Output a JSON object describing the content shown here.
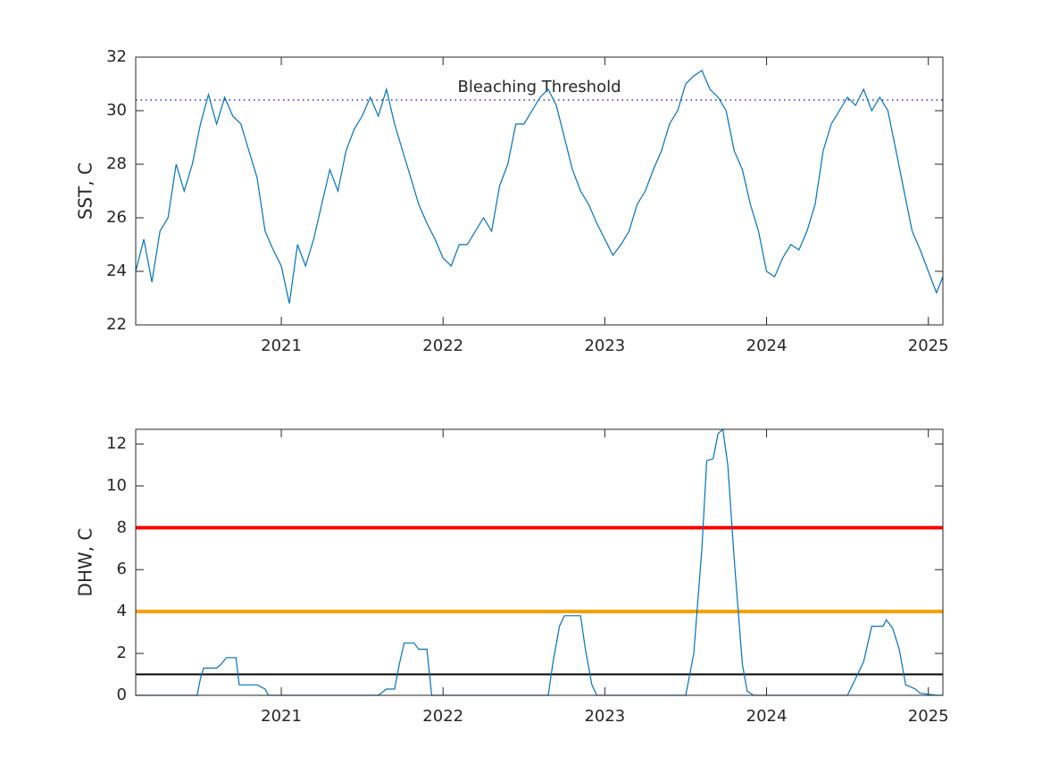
{
  "chart_data": [
    {
      "type": "line",
      "ylabel": "SST, C",
      "color": "#0072bd",
      "x": [
        2020.1,
        2020.15,
        2020.2,
        2020.25,
        2020.3,
        2020.35,
        2020.4,
        2020.45,
        2020.5,
        2020.55,
        2020.6,
        2020.65,
        2020.7,
        2020.75,
        2020.8,
        2020.85,
        2020.9,
        2020.95,
        2021.0,
        2021.05,
        2021.1,
        2021.15,
        2021.2,
        2021.25,
        2021.3,
        2021.35,
        2021.4,
        2021.45,
        2021.5,
        2021.55,
        2021.6,
        2021.65,
        2021.7,
        2021.75,
        2021.8,
        2021.85,
        2021.9,
        2021.95,
        2022.0,
        2022.05,
        2022.1,
        2022.15,
        2022.2,
        2022.25,
        2022.3,
        2022.35,
        2022.4,
        2022.45,
        2022.5,
        2022.55,
        2022.6,
        2022.65,
        2022.7,
        2022.75,
        2022.8,
        2022.85,
        2022.9,
        2022.95,
        2023.0,
        2023.05,
        2023.1,
        2023.15,
        2023.2,
        2023.25,
        2023.3,
        2023.35,
        2023.4,
        2023.45,
        2023.5,
        2023.55,
        2023.6,
        2023.65,
        2023.7,
        2023.75,
        2023.8,
        2023.85,
        2023.9,
        2023.95,
        2024.0,
        2024.05,
        2024.1,
        2024.15,
        2024.2,
        2024.25,
        2024.3,
        2024.35,
        2024.4,
        2024.45,
        2024.5,
        2024.55,
        2024.6,
        2024.65,
        2024.7,
        2024.75,
        2024.8,
        2024.85,
        2024.9,
        2024.95,
        2025.0,
        2025.05,
        2025.09
      ],
      "values": [
        24.0,
        25.2,
        23.6,
        25.5,
        26.0,
        28.0,
        27.0,
        28.0,
        29.5,
        30.6,
        29.5,
        30.5,
        29.8,
        29.5,
        28.5,
        27.5,
        25.5,
        24.8,
        24.2,
        22.8,
        25.0,
        24.2,
        25.2,
        26.5,
        27.8,
        27.0,
        28.5,
        29.3,
        29.8,
        30.5,
        29.8,
        30.8,
        29.5,
        28.5,
        27.5,
        26.5,
        25.8,
        25.2,
        24.5,
        24.2,
        25.0,
        25.0,
        25.5,
        26.0,
        25.5,
        27.2,
        28.0,
        29.5,
        29.5,
        30.0,
        30.5,
        30.8,
        30.2,
        29.0,
        27.8,
        27.0,
        26.5,
        25.8,
        25.2,
        24.6,
        25.0,
        25.5,
        26.5,
        27.0,
        27.8,
        28.5,
        29.5,
        30.0,
        31.0,
        31.3,
        31.5,
        30.8,
        30.5,
        30.0,
        28.5,
        27.8,
        26.5,
        25.5,
        24.0,
        23.8,
        24.5,
        25.0,
        24.8,
        25.5,
        26.5,
        28.5,
        29.5,
        30.0,
        30.5,
        30.2,
        30.8,
        30.0,
        30.5,
        30.0,
        28.5,
        27.0,
        25.5,
        24.8,
        24.0,
        23.2,
        23.8
      ],
      "xlim": [
        2020.1,
        2025.09
      ],
      "xticks": [
        2021,
        2022,
        2023,
        2024,
        2025
      ],
      "ylim": [
        22,
        32
      ],
      "yticks": [
        22,
        24,
        26,
        28,
        30,
        32
      ],
      "threshold": {
        "label": "Bleaching Threshold",
        "value": 30.4,
        "color": "#0000ff"
      }
    },
    {
      "type": "line",
      "ylabel": "DHW, C",
      "color": "#0072bd",
      "x": [
        2020.1,
        2020.48,
        2020.5,
        2020.52,
        2020.6,
        2020.63,
        2020.66,
        2020.72,
        2020.74,
        2020.85,
        2020.9,
        2020.92,
        2021.6,
        2021.65,
        2021.7,
        2021.73,
        2021.76,
        2021.82,
        2021.85,
        2021.9,
        2021.93,
        2022.65,
        2022.68,
        2022.72,
        2022.75,
        2022.85,
        2022.88,
        2022.92,
        2022.95,
        2023.5,
        2023.55,
        2023.6,
        2023.63,
        2023.67,
        2023.7,
        2023.73,
        2023.76,
        2023.8,
        2023.85,
        2023.88,
        2023.92,
        2024.5,
        2024.55,
        2024.6,
        2024.65,
        2024.72,
        2024.74,
        2024.78,
        2024.82,
        2024.86,
        2024.92,
        2024.95,
        2025.05,
        2025.09
      ],
      "values": [
        0,
        0,
        0.8,
        1.3,
        1.3,
        1.5,
        1.8,
        1.8,
        0.5,
        0.5,
        0.3,
        0,
        0,
        0.3,
        0.3,
        1.5,
        2.5,
        2.5,
        2.2,
        2.2,
        0,
        0,
        1.6,
        3.3,
        3.8,
        3.8,
        2.2,
        0.5,
        0,
        0,
        2,
        7,
        11.2,
        11.3,
        12.5,
        12.7,
        11,
        6.5,
        1.5,
        0.2,
        0,
        0,
        0.8,
        1.6,
        3.3,
        3.3,
        3.6,
        3.2,
        2.2,
        0.5,
        0.3,
        0.1,
        0,
        0
      ],
      "xlim": [
        2020.1,
        2025.09
      ],
      "xticks": [
        2021,
        2022,
        2023,
        2024,
        2025
      ],
      "ylim": [
        0,
        12.7
      ],
      "yticks": [
        0,
        2,
        4,
        6,
        8,
        10,
        12
      ],
      "reference_lines": [
        {
          "value": 8,
          "color": "#ff0000"
        },
        {
          "value": 4,
          "color": "#f5a000"
        },
        {
          "value": 1,
          "color": "#000000"
        }
      ]
    }
  ]
}
